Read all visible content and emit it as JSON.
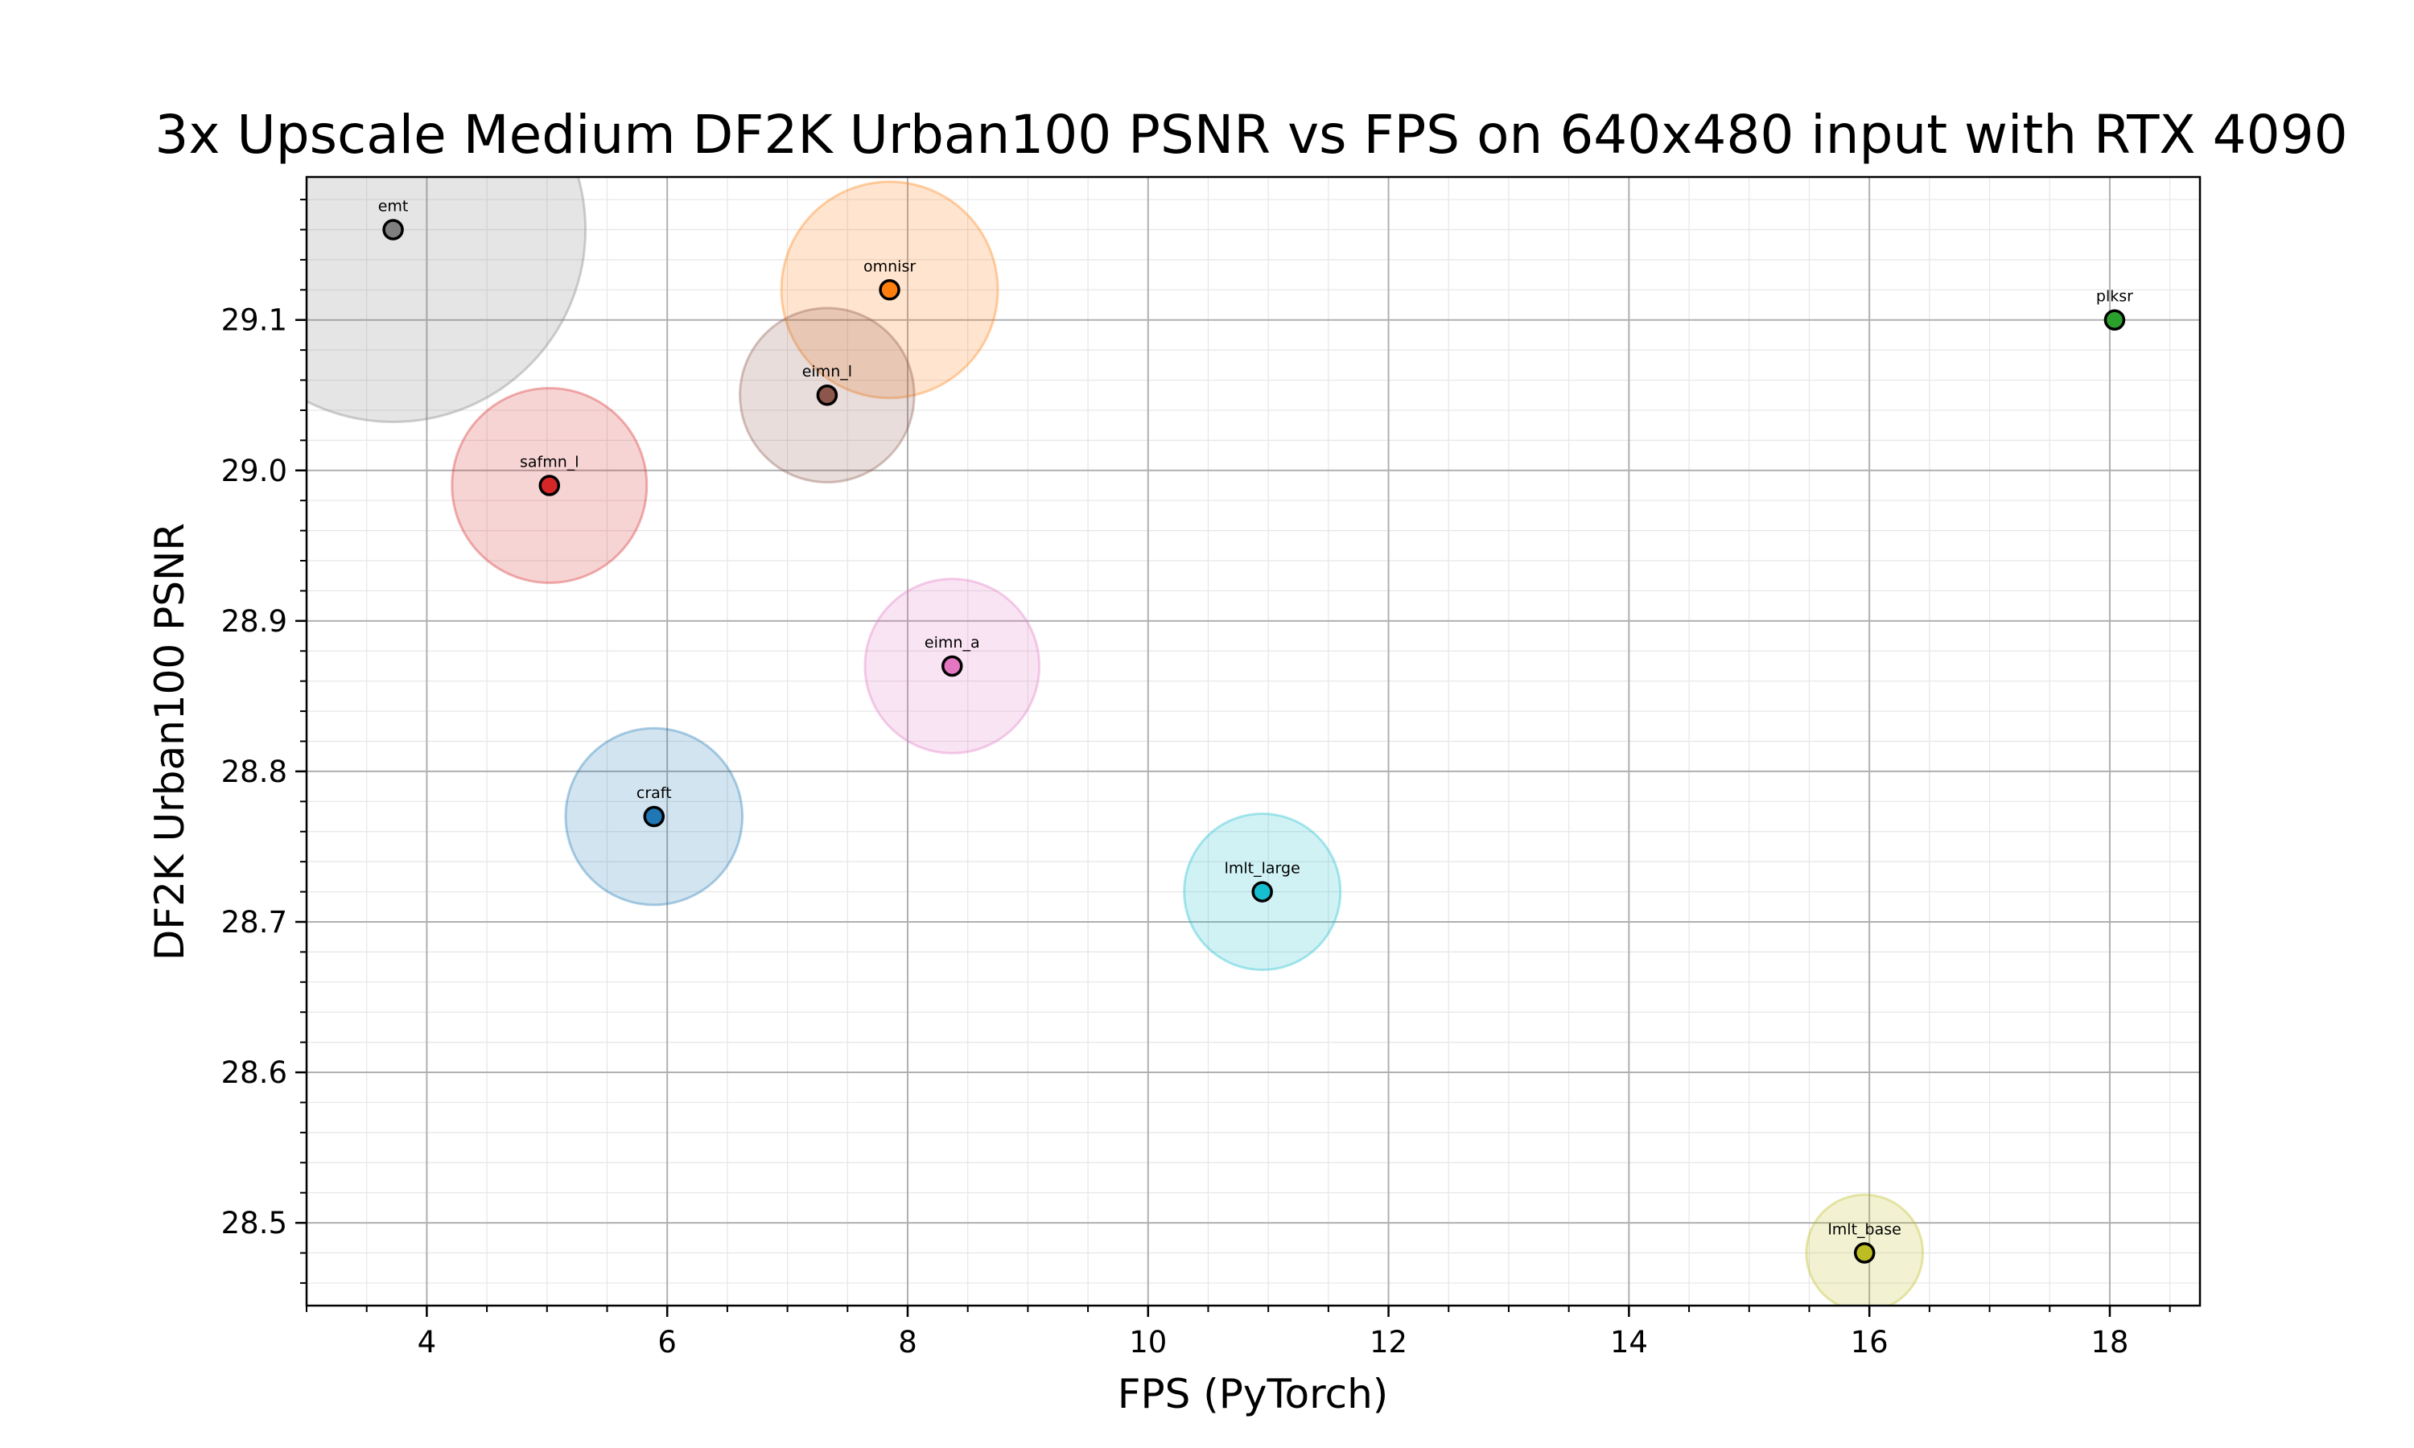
{
  "chart_data": {
    "type": "scatter",
    "title": "3x Upscale Medium DF2K Urban100 PSNR vs FPS on 640x480 input with RTX 4090",
    "xlabel": "FPS (PyTorch)",
    "ylabel": "DF2K Urban100 PSNR",
    "xlim": [
      3.0,
      18.75
    ],
    "ylim": [
      28.445,
      29.195
    ],
    "xticks": [
      4,
      6,
      8,
      10,
      12,
      14,
      16,
      18
    ],
    "yticks": [
      28.5,
      28.6,
      28.7,
      28.8,
      28.9,
      29.0,
      29.1
    ],
    "ytick_labels": [
      "28.5",
      "28.6",
      "28.7",
      "28.8",
      "28.9",
      "29.0",
      "29.1"
    ],
    "grid": "major and minor",
    "points": [
      {
        "name": "emt",
        "x": 3.72,
        "y": 29.16,
        "bubble": 3.2,
        "color": "#7f7f7f"
      },
      {
        "name": "omnisr",
        "x": 7.85,
        "y": 29.12,
        "bubble": 1.8,
        "color": "#ff7f0e"
      },
      {
        "name": "plksr",
        "x": 18.04,
        "y": 29.1,
        "bubble": 0.0,
        "color": "#2ca02c"
      },
      {
        "name": "eimn_l",
        "x": 7.33,
        "y": 29.05,
        "bubble": 1.45,
        "color": "#8c564b"
      },
      {
        "name": "safmn_l",
        "x": 5.02,
        "y": 28.99,
        "bubble": 1.62,
        "color": "#d62728"
      },
      {
        "name": "eimn_a",
        "x": 8.37,
        "y": 28.87,
        "bubble": 1.45,
        "color": "#e377c2"
      },
      {
        "name": "craft",
        "x": 5.89,
        "y": 28.77,
        "bubble": 1.47,
        "color": "#1f77b4"
      },
      {
        "name": "lmlt_large",
        "x": 10.95,
        "y": 28.72,
        "bubble": 1.3,
        "color": "#17becf"
      },
      {
        "name": "lmlt_base",
        "x": 15.96,
        "y": 28.48,
        "bubble": 0.97,
        "color": "#bcbd22"
      }
    ]
  }
}
